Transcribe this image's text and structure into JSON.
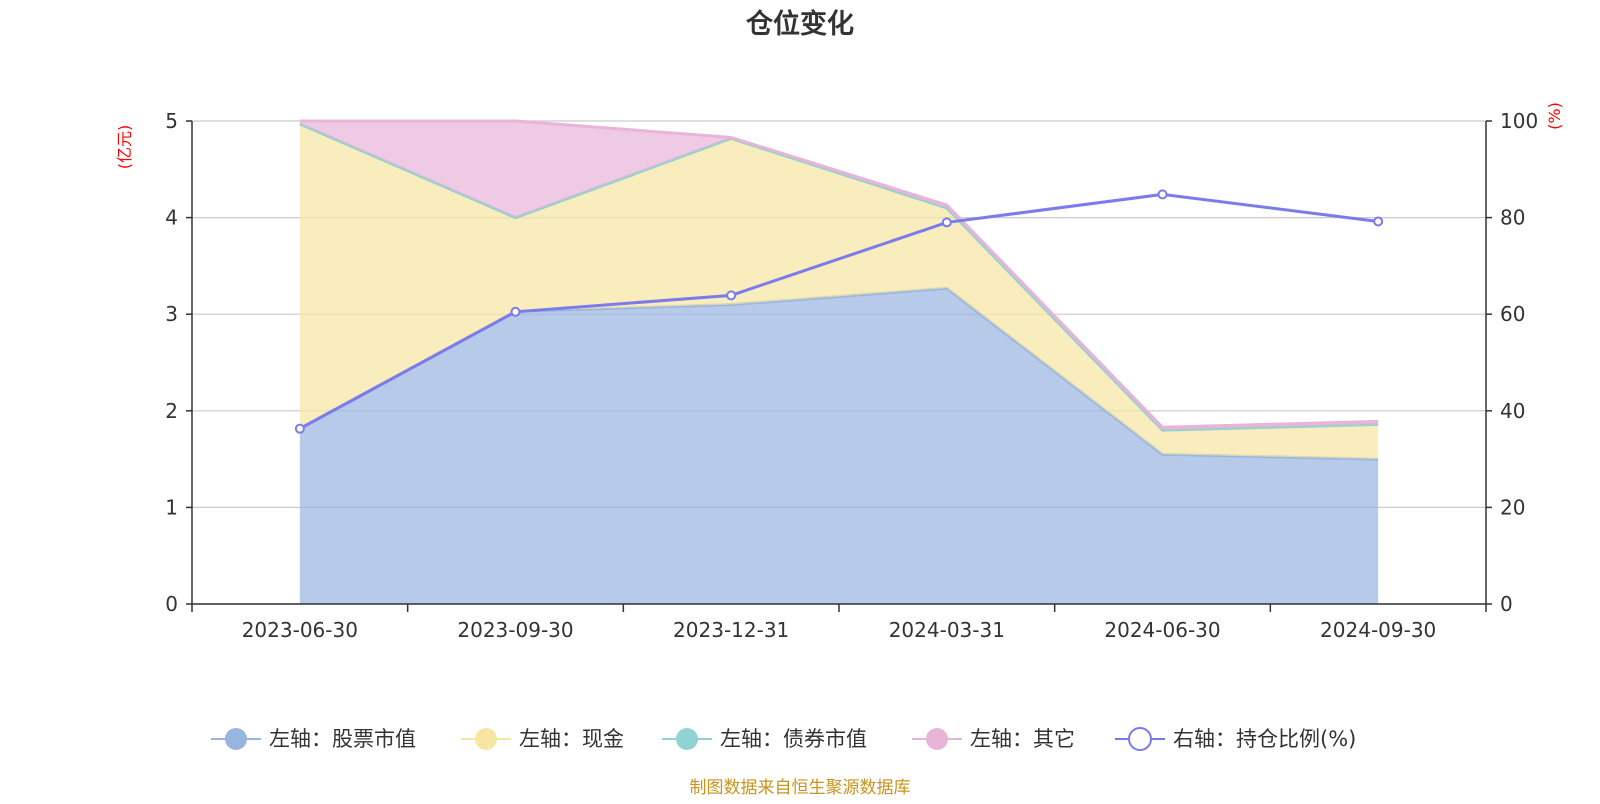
{
  "chart_data": {
    "type": "area",
    "title": "仓位变化",
    "categories": [
      "2023-06-30",
      "2023-09-30",
      "2023-12-31",
      "2024-03-31",
      "2024-06-30",
      "2024-09-30"
    ],
    "left_axis": {
      "unit": "(亿元)",
      "ylim": [
        0,
        5
      ],
      "ticks": [
        "0",
        "1",
        "2",
        "3",
        "4",
        "5"
      ]
    },
    "right_axis": {
      "unit": "(%)",
      "ylim": [
        0,
        100
      ],
      "ticks": [
        "0",
        "20",
        "40",
        "60",
        "80",
        "100"
      ]
    },
    "grid": true,
    "legend_position": "bottom",
    "stacked": true,
    "series": [
      {
        "name": "左轴：股票市值",
        "axis": "left",
        "type": "area",
        "color": "#98b4e0",
        "values": [
          1.82,
          3.03,
          3.1,
          3.27,
          1.55,
          1.5
        ]
      },
      {
        "name": "左轴：现金",
        "axis": "left",
        "type": "area",
        "color": "#f7e6a3",
        "values": [
          3.15,
          0.97,
          1.72,
          0.83,
          0.25,
          0.36
        ]
      },
      {
        "name": "左轴：债券市值",
        "axis": "left",
        "type": "area",
        "color": "#8fd3d3",
        "values": [
          0,
          0,
          0,
          0,
          0,
          0
        ]
      },
      {
        "name": "左轴：其它",
        "axis": "left",
        "type": "area",
        "color": "#e8b4d8",
        "values": [
          0.03,
          1.0,
          0.01,
          0.03,
          0.03,
          0.03
        ]
      },
      {
        "name": "右轴：持仓比例(%)",
        "axis": "right",
        "type": "line",
        "color": "#7b7beb",
        "values": [
          36.3,
          60.5,
          63.9,
          79.0,
          84.8,
          79.2
        ]
      }
    ]
  },
  "footer": {
    "source": "制图数据来自恒生聚源数据库",
    "source_color": "#c8941f"
  }
}
